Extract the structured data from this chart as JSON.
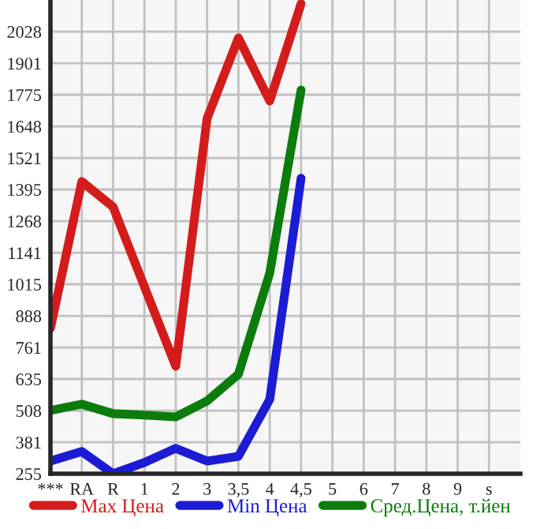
{
  "chart_data": {
    "type": "line",
    "categories": [
      "***",
      "RA",
      "R",
      "1",
      "2",
      "3",
      "3,5",
      "4",
      "4,5",
      "5",
      "6",
      "7",
      "8",
      "9",
      "s"
    ],
    "series": [
      {
        "name": "Max Цена",
        "color": "#d41c1c",
        "values": [
          838,
          1427,
          1325,
          1005,
          686,
          1680,
          2003,
          1750,
          2140,
          null,
          null,
          null,
          null,
          null,
          null
        ]
      },
      {
        "name": "Min Цена",
        "color": "#1c1cd4",
        "values": [
          306,
          344,
          255,
          300,
          357,
          306,
          325,
          553,
          1440,
          null,
          null,
          null,
          null,
          null,
          null
        ]
      },
      {
        "name": "Сред.Цена, т.йен",
        "color": "#0c7c0c",
        "values": [
          509,
          534,
          496,
          490,
          483,
          547,
          654,
          1060,
          1794,
          null,
          null,
          null,
          null,
          null,
          null
        ]
      }
    ],
    "ylim": [
      255,
      2155
    ],
    "yticks": [
      255,
      381,
      508,
      635,
      761,
      888,
      1015,
      1141,
      1268,
      1395,
      1521,
      1648,
      1775,
      1901,
      2028
    ],
    "grid": true,
    "legend": "bottom",
    "marker": "none",
    "line_style": "solid"
  }
}
